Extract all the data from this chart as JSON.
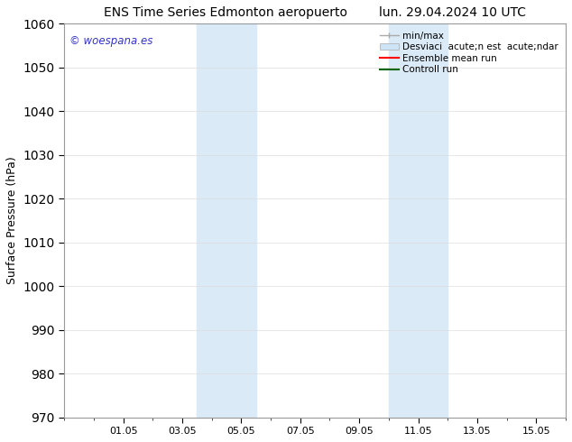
{
  "title_left": "ENS Time Series Edmonton aeropuerto",
  "title_right": "lun. 29.04.2024 10 UTC",
  "ylabel": "Surface Pressure (hPa)",
  "xtick_labels": [
    "01.05",
    "03.05",
    "05.05",
    "07.05",
    "09.05",
    "11.05",
    "13.05",
    "15.05"
  ],
  "xtick_positions": [
    2,
    4,
    6,
    8,
    10,
    12,
    14,
    16
  ],
  "xlim": [
    0,
    17
  ],
  "ylim": [
    970,
    1060
  ],
  "ytick_step": 10,
  "watermark": "© woespana.es",
  "watermark_color": "#3333cc",
  "shaded_regions": [
    {
      "xstart": 4.5,
      "xend": 5.5
    },
    {
      "xstart": 5.5,
      "xend": 6.5
    },
    {
      "xstart": 11.0,
      "xend": 12.0
    },
    {
      "xstart": 12.0,
      "xend": 13.0
    }
  ],
  "shade_color": "#daeaf7",
  "legend_label_minmax": "min/max",
  "legend_label_desv": "Desviaci  acute;n est  acute;ndar",
  "legend_label_ensemble": "Ensemble mean run",
  "legend_label_control": "Controll run",
  "legend_color_minmax": "#aaaaaa",
  "legend_color_desv": "#cce4f5",
  "legend_color_ensemble": "#ff0000",
  "legend_color_control": "#006600",
  "background_color": "#ffffff",
  "grid_color": "#dddddd",
  "title_fontsize": 10,
  "axis_label_fontsize": 9,
  "tick_fontsize": 8,
  "legend_fontsize": 7.5
}
